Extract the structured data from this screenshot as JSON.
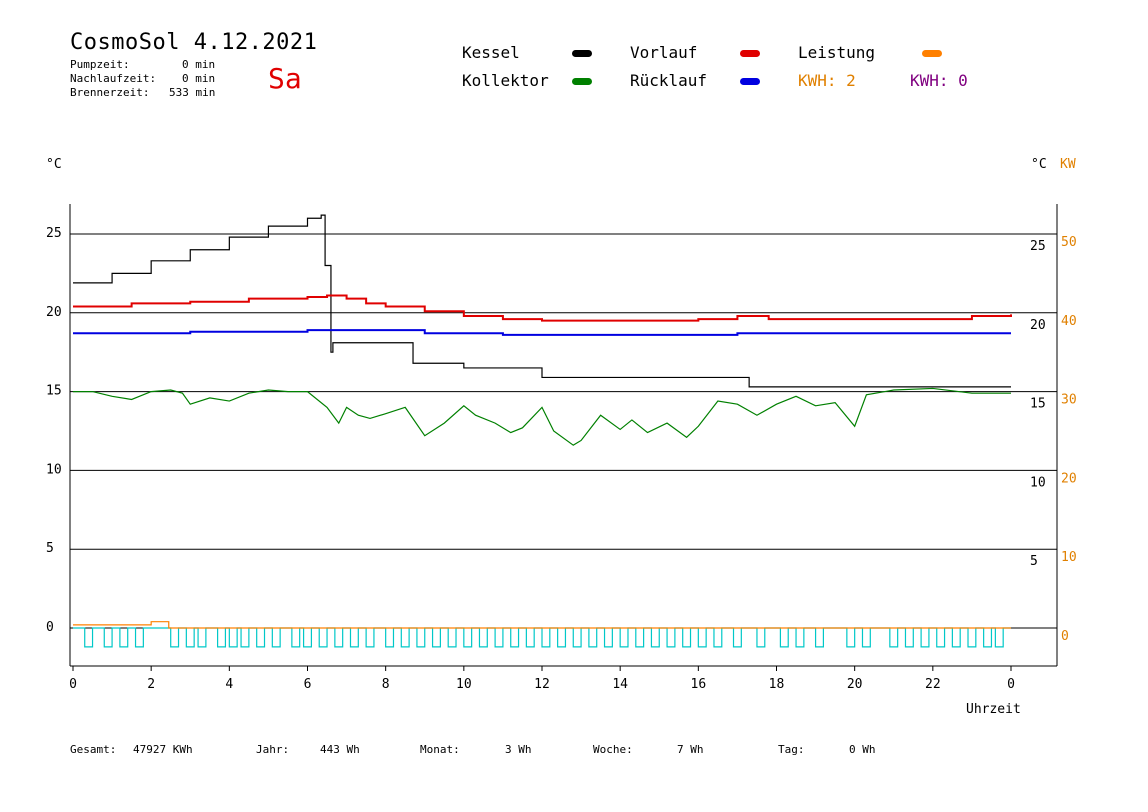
{
  "header": {
    "title": "CosmoSol 4.12.2021",
    "day": "Sa",
    "stats": [
      {
        "label": "Pumpzeit:",
        "value": "0 min"
      },
      {
        "label": "Nachlaufzeit:",
        "value": "0 min"
      },
      {
        "label": "Brennerzeit:",
        "value": "533 min"
      }
    ]
  },
  "legend": {
    "items": [
      {
        "label": "Kessel",
        "color": "#000000"
      },
      {
        "label": "Vorlauf",
        "color": "#e00000"
      },
      {
        "label": "Leistung",
        "color": "#ff8000"
      },
      {
        "label": "Kollektor",
        "color": "#008000"
      },
      {
        "label": "Rücklauf",
        "color": "#0000e0"
      }
    ],
    "kwh_orange": "KWH: 2",
    "kwh_purple": "KWH: 0",
    "kwh_orange_color": "#e08000",
    "kwh_purple_color": "#800080"
  },
  "axes": {
    "left_unit": "°C",
    "right_unit_c": "°C",
    "right_unit_kw": "KW",
    "xlabel": "Uhrzeit"
  },
  "footer": {
    "gesamt_label": "Gesamt:",
    "gesamt_value": "47927 KWh",
    "jahr_label": "Jahr:",
    "jahr_value": "443 Wh",
    "monat_label": "Monat:",
    "monat_value": "3 Wh",
    "woche_label": "Woche:",
    "woche_value": "7 Wh",
    "tag_label": "Tag:",
    "tag_value": "0 Wh"
  },
  "chart_data": {
    "type": "line",
    "title": "",
    "xlabel": "Uhrzeit",
    "ylabel": "°C",
    "x_range": [
      0,
      24
    ],
    "y_left_range": [
      -3,
      27.5
    ],
    "y_left_ticks": [
      0,
      5,
      10,
      15,
      20,
      25
    ],
    "x_tick_labels": [
      "0",
      "2",
      "4",
      "6",
      "8",
      "10",
      "12",
      "14",
      "16",
      "18",
      "20",
      "22",
      "0"
    ],
    "right_c_ticks": [
      {
        "value": 5,
        "label": "5"
      },
      {
        "value": 10,
        "label": "10"
      },
      {
        "value": 15,
        "label": "15"
      },
      {
        "value": 20,
        "label": "20"
      },
      {
        "value": 25,
        "label": "25"
      }
    ],
    "right_kw_ticks": [
      {
        "value": 0,
        "label": "0"
      },
      {
        "value": 10,
        "label": "10"
      },
      {
        "value": 20,
        "label": "20"
      },
      {
        "value": 30,
        "label": "30"
      },
      {
        "value": 40,
        "label": "40"
      },
      {
        "value": 50,
        "label": "50"
      }
    ],
    "grid": true,
    "series": [
      {
        "name": "Kessel",
        "color": "#000000",
        "step": true,
        "points": [
          [
            0,
            21.9
          ],
          [
            1,
            22.5
          ],
          [
            2,
            23.3
          ],
          [
            3,
            24.0
          ],
          [
            4,
            24.8
          ],
          [
            5,
            25.5
          ],
          [
            6,
            26.0
          ],
          [
            6.35,
            26.2
          ],
          [
            6.45,
            23
          ],
          [
            6.6,
            17.5
          ],
          [
            6.65,
            18.1
          ],
          [
            8.5,
            18.1
          ],
          [
            8.7,
            16.8
          ],
          [
            9.5,
            16.8
          ],
          [
            10.0,
            16.5
          ],
          [
            11.5,
            16.5
          ],
          [
            12.0,
            15.9
          ],
          [
            17.0,
            15.9
          ],
          [
            17.3,
            15.3
          ],
          [
            24,
            15.3
          ]
        ]
      },
      {
        "name": "Vorlauf",
        "color": "#e00000",
        "step": true,
        "points": [
          [
            0,
            20.4
          ],
          [
            1.5,
            20.6
          ],
          [
            3,
            20.7
          ],
          [
            4.5,
            20.9
          ],
          [
            6,
            21.0
          ],
          [
            6.5,
            21.1
          ],
          [
            7,
            20.9
          ],
          [
            7.5,
            20.6
          ],
          [
            8,
            20.4
          ],
          [
            9,
            20.1
          ],
          [
            10,
            19.8
          ],
          [
            11,
            19.6
          ],
          [
            12,
            19.5
          ],
          [
            14,
            19.5
          ],
          [
            15,
            19.5
          ],
          [
            16,
            19.6
          ],
          [
            17,
            19.8
          ],
          [
            17.8,
            19.6
          ],
          [
            20,
            19.6
          ],
          [
            22,
            19.6
          ],
          [
            23,
            19.8
          ],
          [
            24,
            19.9
          ]
        ]
      },
      {
        "name": "Rücklauf",
        "color": "#0000e0",
        "step": true,
        "points": [
          [
            0,
            18.7
          ],
          [
            3,
            18.8
          ],
          [
            6,
            18.9
          ],
          [
            7,
            18.9
          ],
          [
            9,
            18.7
          ],
          [
            11,
            18.6
          ],
          [
            14,
            18.6
          ],
          [
            17,
            18.7
          ],
          [
            20,
            18.7
          ],
          [
            24,
            18.7
          ]
        ]
      },
      {
        "name": "Kollektor",
        "color": "#008000",
        "step": false,
        "points": [
          [
            0,
            15.0
          ],
          [
            0.5,
            15.0
          ],
          [
            1,
            14.7
          ],
          [
            1.5,
            14.5
          ],
          [
            2,
            15.0
          ],
          [
            2.5,
            15.1
          ],
          [
            2.8,
            14.9
          ],
          [
            3,
            14.2
          ],
          [
            3.5,
            14.6
          ],
          [
            4,
            14.4
          ],
          [
            4.5,
            14.9
          ],
          [
            5,
            15.1
          ],
          [
            5.5,
            15.0
          ],
          [
            6,
            15.0
          ],
          [
            6.5,
            14.0
          ],
          [
            6.8,
            13.0
          ],
          [
            7,
            14.0
          ],
          [
            7.3,
            13.5
          ],
          [
            7.6,
            13.3
          ],
          [
            8,
            13.6
          ],
          [
            8.5,
            14.0
          ],
          [
            9,
            12.2
          ],
          [
            9.5,
            13.0
          ],
          [
            10,
            14.1
          ],
          [
            10.3,
            13.5
          ],
          [
            10.8,
            13.0
          ],
          [
            11.2,
            12.4
          ],
          [
            11.5,
            12.7
          ],
          [
            12,
            14.0
          ],
          [
            12.3,
            12.5
          ],
          [
            12.8,
            11.6
          ],
          [
            13,
            11.9
          ],
          [
            13.5,
            13.5
          ],
          [
            14,
            12.6
          ],
          [
            14.3,
            13.2
          ],
          [
            14.7,
            12.4
          ],
          [
            15.2,
            13.0
          ],
          [
            15.7,
            12.1
          ],
          [
            16,
            12.8
          ],
          [
            16.5,
            14.4
          ],
          [
            17,
            14.2
          ],
          [
            17.5,
            13.5
          ],
          [
            18,
            14.2
          ],
          [
            18.5,
            14.7
          ],
          [
            19,
            14.1
          ],
          [
            19.5,
            14.3
          ],
          [
            20,
            12.8
          ],
          [
            20.3,
            14.8
          ],
          [
            21,
            15.1
          ],
          [
            22,
            15.2
          ],
          [
            23,
            14.9
          ],
          [
            24,
            14.9
          ]
        ]
      },
      {
        "name": "Leistung",
        "color": "#ff8000",
        "step": true,
        "points": [
          [
            0,
            0.2
          ],
          [
            1.5,
            0.2
          ],
          [
            2,
            0.4
          ],
          [
            2.4,
            0.4
          ],
          [
            2.45,
            0
          ],
          [
            24,
            0
          ]
        ]
      }
    ],
    "pump_pulses": {
      "color": "#00c8c8",
      "low_value": -1.2,
      "high_value": 0,
      "intervals": [
        [
          0.3,
          0.5
        ],
        [
          0.8,
          1.0
        ],
        [
          1.2,
          1.4
        ],
        [
          1.6,
          1.8
        ],
        [
          2.5,
          2.7
        ],
        [
          2.9,
          3.1
        ],
        [
          3.2,
          3.4
        ],
        [
          3.7,
          3.9
        ],
        [
          4.0,
          4.2
        ],
        [
          4.3,
          4.5
        ],
        [
          4.7,
          4.9
        ],
        [
          5.1,
          5.3
        ],
        [
          5.6,
          5.8
        ],
        [
          5.9,
          6.1
        ],
        [
          6.3,
          6.5
        ],
        [
          6.7,
          6.9
        ],
        [
          7.1,
          7.3
        ],
        [
          7.5,
          7.7
        ],
        [
          8.0,
          8.2
        ],
        [
          8.4,
          8.6
        ],
        [
          8.8,
          9.0
        ],
        [
          9.2,
          9.4
        ],
        [
          9.6,
          9.8
        ],
        [
          10.0,
          10.2
        ],
        [
          10.4,
          10.6
        ],
        [
          10.8,
          11.0
        ],
        [
          11.2,
          11.4
        ],
        [
          11.6,
          11.8
        ],
        [
          12.0,
          12.2
        ],
        [
          12.4,
          12.6
        ],
        [
          12.8,
          13.0
        ],
        [
          13.2,
          13.4
        ],
        [
          13.6,
          13.8
        ],
        [
          14.0,
          14.2
        ],
        [
          14.4,
          14.6
        ],
        [
          14.8,
          15.0
        ],
        [
          15.2,
          15.4
        ],
        [
          15.6,
          15.8
        ],
        [
          16.0,
          16.2
        ],
        [
          16.4,
          16.6
        ],
        [
          16.9,
          17.1
        ],
        [
          17.5,
          17.7
        ],
        [
          18.1,
          18.3
        ],
        [
          18.5,
          18.7
        ],
        [
          19.0,
          19.2
        ],
        [
          19.8,
          20.0
        ],
        [
          20.2,
          20.4
        ],
        [
          20.9,
          21.1
        ],
        [
          21.3,
          21.5
        ],
        [
          21.7,
          21.9
        ],
        [
          22.1,
          22.3
        ],
        [
          22.5,
          22.7
        ],
        [
          22.9,
          23.1
        ],
        [
          23.3,
          23.5
        ],
        [
          23.6,
          23.8
        ]
      ]
    }
  }
}
